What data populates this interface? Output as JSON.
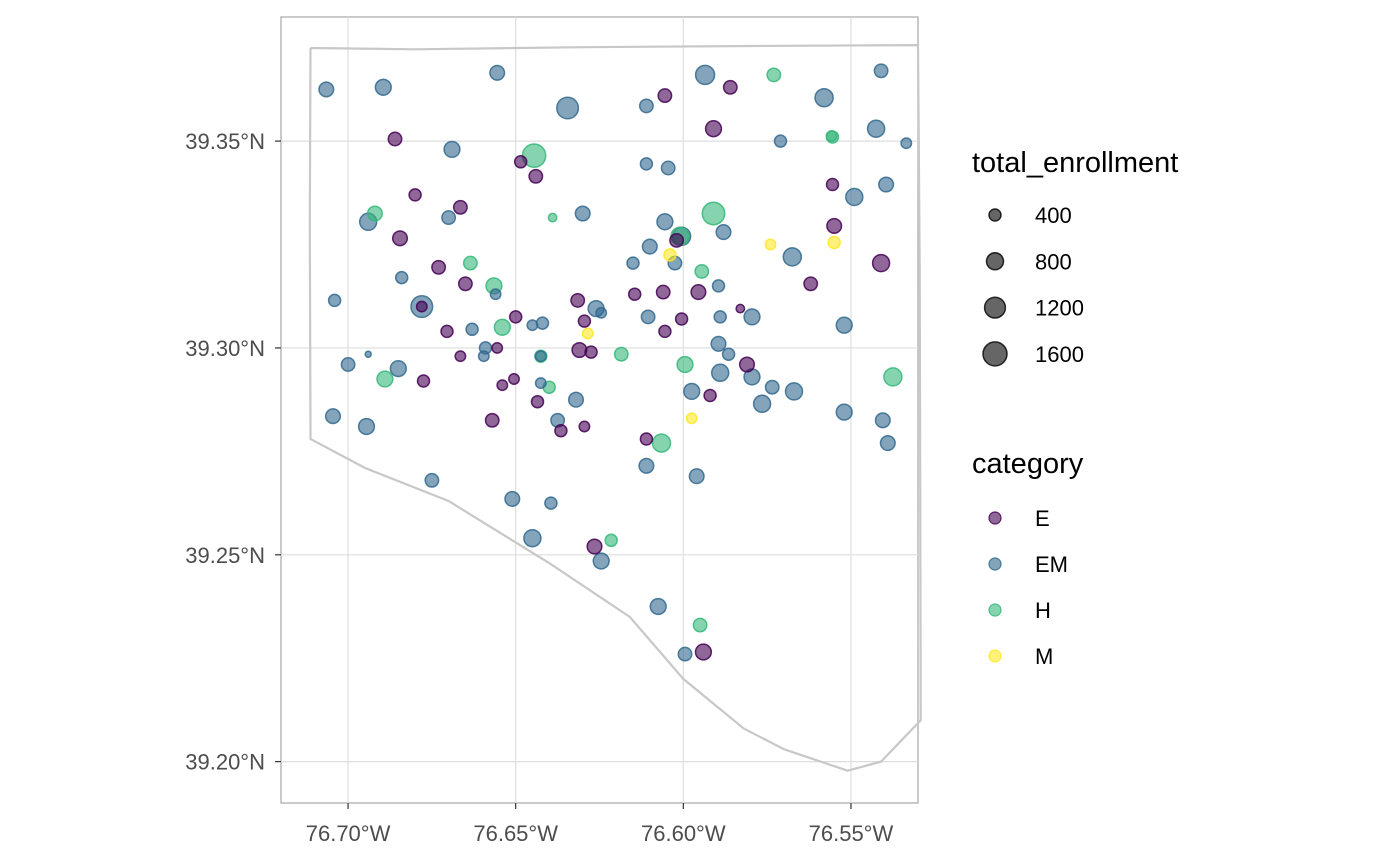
{
  "chart_data": {
    "type": "scatter",
    "projection": "map",
    "title": "",
    "xlabel": "",
    "ylabel": "",
    "xlim": [
      -76.72,
      -76.53
    ],
    "ylim": [
      39.19,
      39.38
    ],
    "grid": true,
    "x_ticks": [
      {
        "value": -76.7,
        "label": "76.70°W"
      },
      {
        "value": -76.65,
        "label": "76.65°W"
      },
      {
        "value": -76.6,
        "label": "76.60°W"
      },
      {
        "value": -76.55,
        "label": "76.55°W"
      }
    ],
    "y_ticks": [
      {
        "value": 39.35,
        "label": "39.35°N"
      },
      {
        "value": 39.3,
        "label": "39.30°N"
      },
      {
        "value": 39.25,
        "label": "39.25°N"
      },
      {
        "value": 39.2,
        "label": "39.20°N"
      }
    ],
    "boundary": [
      [
        -76.7112,
        39.3725
      ],
      [
        -76.68,
        39.3722
      ],
      [
        -76.63,
        39.3727
      ],
      [
        -76.58,
        39.373
      ],
      [
        -76.53,
        39.3732
      ],
      [
        -76.5295,
        39.32
      ],
      [
        -76.5293,
        39.26
      ],
      [
        -76.5292,
        39.21
      ],
      [
        -76.541,
        39.2
      ],
      [
        -76.551,
        39.1978
      ],
      [
        -76.57,
        39.203
      ],
      [
        -76.582,
        39.208
      ],
      [
        -76.6,
        39.22
      ],
      [
        -76.616,
        39.235
      ],
      [
        -76.64,
        39.248
      ],
      [
        -76.67,
        39.263
      ],
      [
        -76.695,
        39.271
      ],
      [
        -76.7112,
        39.278
      ],
      [
        -76.7114,
        39.33
      ],
      [
        -76.7112,
        39.3725
      ]
    ],
    "size_legend": {
      "title": "total_enrollment",
      "values": [
        400,
        800,
        1200,
        1600
      ]
    },
    "color_legend": {
      "title": "category",
      "entries": [
        {
          "name": "E",
          "color": "#440154"
        },
        {
          "name": "EM",
          "color": "#31688e"
        },
        {
          "name": "H",
          "color": "#35b779"
        },
        {
          "name": "M",
          "color": "#fde725"
        }
      ]
    },
    "series": [
      {
        "name": "E",
        "color": "#440154",
        "points": [
          [
            -76.6055,
            39.361,
            500
          ],
          [
            -76.586,
            39.363,
            500
          ],
          [
            -76.686,
            39.3505,
            500
          ],
          [
            -76.591,
            39.353,
            700
          ],
          [
            -76.6485,
            39.345,
            400
          ],
          [
            -76.644,
            39.3415,
            500
          ],
          [
            -76.5555,
            39.3395,
            400
          ],
          [
            -76.68,
            39.337,
            400
          ],
          [
            -76.6665,
            39.334,
            500
          ],
          [
            -76.555,
            39.3295,
            600
          ],
          [
            -76.6845,
            39.3265,
            600
          ],
          [
            -76.602,
            39.326,
            500
          ],
          [
            -76.541,
            39.3205,
            800
          ],
          [
            -76.673,
            39.3195,
            500
          ],
          [
            -76.665,
            39.3155,
            500
          ],
          [
            -76.562,
            39.3155,
            500
          ],
          [
            -76.6145,
            39.313,
            400
          ],
          [
            -76.606,
            39.3135,
            500
          ],
          [
            -76.5955,
            39.3135,
            600
          ],
          [
            -76.6315,
            39.3115,
            500
          ],
          [
            -76.65,
            39.3075,
            400
          ],
          [
            -76.6295,
            39.3065,
            400
          ],
          [
            -76.6005,
            39.307,
            400
          ],
          [
            -76.6705,
            39.304,
            400
          ],
          [
            -76.6055,
            39.304,
            400
          ],
          [
            -76.631,
            39.2995,
            600
          ],
          [
            -76.6555,
            39.3,
            300
          ],
          [
            -76.6275,
            39.299,
            400
          ],
          [
            -76.6665,
            39.298,
            300
          ],
          [
            -76.581,
            39.296,
            600
          ],
          [
            -76.6775,
            39.292,
            400
          ],
          [
            -76.6505,
            39.2925,
            300
          ],
          [
            -76.654,
            39.291,
            300
          ],
          [
            -76.592,
            39.2885,
            400
          ],
          [
            -76.6435,
            39.287,
            400
          ],
          [
            -76.657,
            39.2825,
            500
          ],
          [
            -76.6295,
            39.281,
            300
          ],
          [
            -76.6365,
            39.28,
            400
          ],
          [
            -76.611,
            39.278,
            400
          ],
          [
            -76.6265,
            39.252,
            600
          ],
          [
            -76.594,
            39.2265,
            700
          ],
          [
            -76.678,
            39.31,
            300
          ],
          [
            -76.583,
            39.3095,
            200
          ]
        ]
      },
      {
        "name": "EM",
        "color": "#31688e",
        "points": [
          [
            -76.6555,
            39.3665,
            600
          ],
          [
            -76.5935,
            39.366,
            1000
          ],
          [
            -76.541,
            39.367,
            500
          ],
          [
            -76.7065,
            39.3625,
            600
          ],
          [
            -76.6895,
            39.363,
            700
          ],
          [
            -76.558,
            39.3605,
            900
          ],
          [
            -76.611,
            39.3585,
            500
          ],
          [
            -76.6345,
            39.358,
            1300
          ],
          [
            -76.5425,
            39.353,
            800
          ],
          [
            -76.571,
            39.35,
            400
          ],
          [
            -76.5335,
            39.3495,
            300
          ],
          [
            -76.669,
            39.348,
            700
          ],
          [
            -76.611,
            39.3445,
            400
          ],
          [
            -76.6045,
            39.3435,
            500
          ],
          [
            -76.5395,
            39.3395,
            600
          ],
          [
            -76.549,
            39.3365,
            800
          ],
          [
            -76.63,
            39.3325,
            600
          ],
          [
            -76.6055,
            39.3305,
            700
          ],
          [
            -76.694,
            39.3305,
            800
          ],
          [
            -76.67,
            39.3315,
            500
          ],
          [
            -76.6005,
            39.327,
            900
          ],
          [
            -76.588,
            39.328,
            600
          ],
          [
            -76.61,
            39.3245,
            600
          ],
          [
            -76.5675,
            39.322,
            900
          ],
          [
            -76.6025,
            39.3205,
            500
          ],
          [
            -76.615,
            39.3205,
            400
          ],
          [
            -76.684,
            39.317,
            400
          ],
          [
            -76.5895,
            39.315,
            400
          ],
          [
            -76.656,
            39.313,
            300
          ],
          [
            -76.704,
            39.3115,
            400
          ],
          [
            -76.678,
            39.31,
            1300
          ],
          [
            -76.626,
            39.3095,
            700
          ],
          [
            -76.6245,
            39.3085,
            300
          ],
          [
            -76.6105,
            39.3075,
            500
          ],
          [
            -76.589,
            39.3075,
            400
          ],
          [
            -76.5795,
            39.3075,
            700
          ],
          [
            -76.642,
            39.306,
            400
          ],
          [
            -76.645,
            39.3055,
            300
          ],
          [
            -76.552,
            39.3055,
            700
          ],
          [
            -76.663,
            39.3045,
            400
          ],
          [
            -76.5895,
            39.301,
            600
          ],
          [
            -76.659,
            39.3,
            400
          ],
          [
            -76.5865,
            39.2985,
            400
          ],
          [
            -76.6425,
            39.298,
            300
          ],
          [
            -76.6595,
            39.298,
            300
          ],
          [
            -76.694,
            39.2985,
            100
          ],
          [
            -76.7,
            39.296,
            500
          ],
          [
            -76.685,
            39.295,
            700
          ],
          [
            -76.589,
            39.294,
            800
          ],
          [
            -76.5795,
            39.293,
            700
          ],
          [
            -76.6425,
            39.2915,
            300
          ],
          [
            -76.5735,
            39.2905,
            500
          ],
          [
            -76.567,
            39.2895,
            800
          ],
          [
            -76.5975,
            39.2895,
            700
          ],
          [
            -76.632,
            39.2875,
            600
          ],
          [
            -76.5765,
            39.2865,
            800
          ],
          [
            -76.552,
            39.2845,
            700
          ],
          [
            -76.7045,
            39.2835,
            600
          ],
          [
            -76.6375,
            39.2825,
            500
          ],
          [
            -76.5405,
            39.2825,
            600
          ],
          [
            -76.6945,
            39.281,
            700
          ],
          [
            -76.539,
            39.277,
            600
          ],
          [
            -76.611,
            39.2715,
            600
          ],
          [
            -76.596,
            39.269,
            600
          ],
          [
            -76.675,
            39.268,
            500
          ],
          [
            -76.651,
            39.2635,
            600
          ],
          [
            -76.6395,
            39.2625,
            400
          ],
          [
            -76.645,
            39.254,
            800
          ],
          [
            -76.6245,
            39.2485,
            700
          ],
          [
            -76.6075,
            39.2375,
            700
          ],
          [
            -76.5995,
            39.226,
            500
          ]
        ]
      },
      {
        "name": "H",
        "color": "#35b779",
        "points": [
          [
            -76.573,
            39.366,
            500
          ],
          [
            -76.5555,
            39.351,
            400
          ],
          [
            -76.5558,
            39.3512,
            300
          ],
          [
            -76.6445,
            39.3465,
            1500
          ],
          [
            -76.692,
            39.3325,
            600
          ],
          [
            -76.639,
            39.3315,
            200
          ],
          [
            -76.591,
            39.3325,
            1400
          ],
          [
            -76.601,
            39.327,
            900
          ],
          [
            -76.6635,
            39.3205,
            500
          ],
          [
            -76.5945,
            39.3185,
            500
          ],
          [
            -76.6565,
            39.315,
            700
          ],
          [
            -76.654,
            39.305,
            700
          ],
          [
            -76.6425,
            39.298,
            400
          ],
          [
            -76.6185,
            39.2985,
            500
          ],
          [
            -76.5995,
            39.296,
            700
          ],
          [
            -76.5375,
            39.293,
            900
          ],
          [
            -76.689,
            39.2925,
            700
          ],
          [
            -76.64,
            39.2905,
            400
          ],
          [
            -76.6065,
            39.277,
            900
          ],
          [
            -76.6215,
            39.2535,
            400
          ],
          [
            -76.595,
            39.233,
            500
          ]
        ]
      },
      {
        "name": "M",
        "color": "#fde725",
        "points": [
          [
            -76.574,
            39.325,
            300
          ],
          [
            -76.555,
            39.3255,
            400
          ],
          [
            -76.604,
            39.3225,
            400
          ],
          [
            -76.6285,
            39.3035,
            300
          ],
          [
            -76.5975,
            39.283,
            300
          ]
        ]
      }
    ]
  }
}
